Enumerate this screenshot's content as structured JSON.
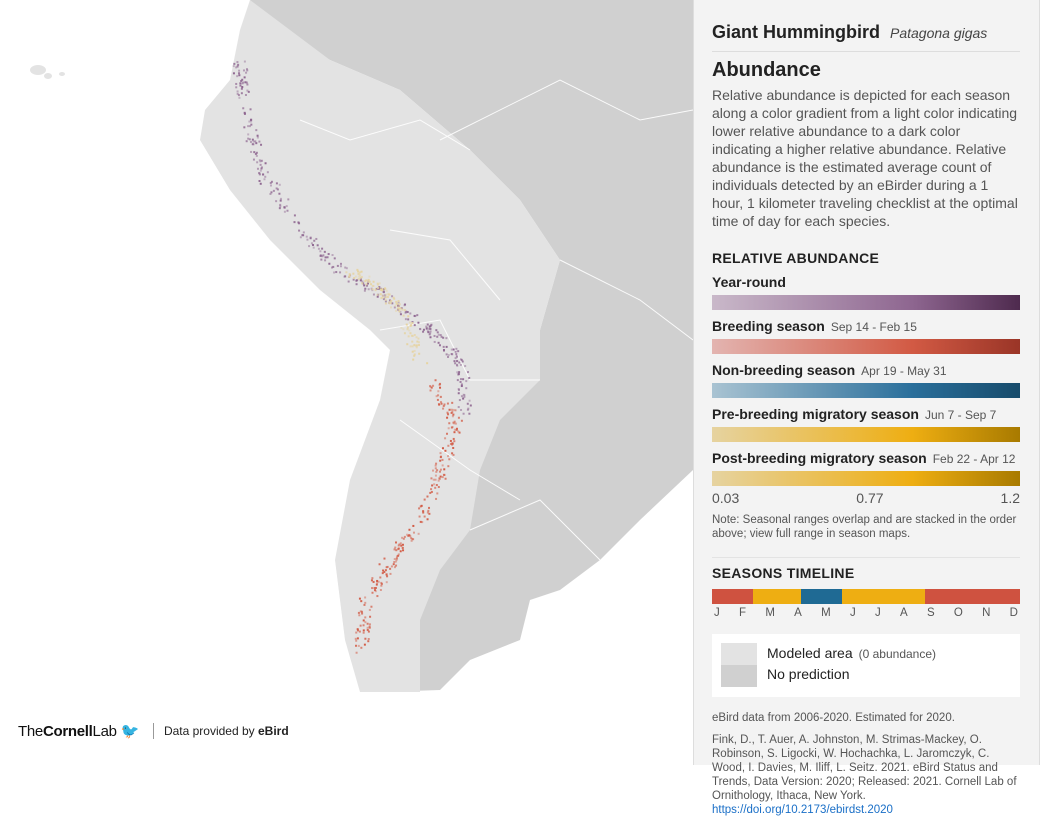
{
  "map": {
    "ocean_color": "#ffffff",
    "modeled_color": "#e3e3e3",
    "no_prediction_color": "#d0d0d0"
  },
  "footer": {
    "logo_text_1": "The",
    "logo_text_2": "Cornell",
    "logo_text_3": "Lab",
    "data_provided": "Data provided by ",
    "ebird": "eBird"
  },
  "panel": {
    "common_name": "Giant Hummingbird",
    "scientific_name": "Patagona gigas",
    "section_title": "Abundance",
    "description": "Relative abundance is depicted for each season along a color gradient from a light color indicating lower relative abundance to a dark color indicating a higher relative abundance. Relative abundance is the estimated average count of individuals detected by an eBirder during a 1 hour, 1 kilometer traveling checklist at the optimal time of day for each species.",
    "legend_title": "RELATIVE ABUNDANCE",
    "seasons": [
      {
        "label": "Year-round",
        "dates": "",
        "colors": [
          "#c9b8c9",
          "#8e6690",
          "#4e2a4e"
        ]
      },
      {
        "label": "Breeding season",
        "dates": "Sep 14 - Feb 15",
        "colors": [
          "#e3b4b0",
          "#d25a44",
          "#9a3527"
        ]
      },
      {
        "label": "Non-breeding season",
        "dates": "Apr 19 - May 31",
        "colors": [
          "#a9c3d2",
          "#2a6f9b",
          "#174b6b"
        ]
      },
      {
        "label": "Pre-breeding migratory season",
        "dates": "Jun 7 - Sep 7",
        "colors": [
          "#e6d3a0",
          "#eeae12",
          "#a87a00"
        ]
      },
      {
        "label": "Post-breeding migratory season",
        "dates": "Feb 22 - Apr 12",
        "colors": [
          "#e6d3a0",
          "#eeae12",
          "#a87a00"
        ]
      }
    ],
    "scale": [
      "0.03",
      "0.77",
      "1.2"
    ],
    "note": "Note: Seasonal ranges overlap and are stacked in the order above; view full range in season maps.",
    "timeline_title": "SEASONS TIMELINE",
    "timeline": [
      {
        "season": "Breeding season",
        "color": "#cf5240",
        "fraction": 0.133
      },
      {
        "season": "Post-breeding migratory season",
        "color": "#eeae12",
        "fraction": 0.156
      },
      {
        "season": "Non-breeding season",
        "color": "#1f6a94",
        "fraction": 0.133
      },
      {
        "season": "Pre-breeding migratory season",
        "color": "#eeae12",
        "fraction": 0.27
      },
      {
        "season": "Breeding season",
        "color": "#cf5240",
        "fraction": 0.308
      }
    ],
    "months": [
      "J",
      "F",
      "M",
      "A",
      "M",
      "J",
      "J",
      "A",
      "S",
      "O",
      "N",
      "D"
    ],
    "map_legend": {
      "modeled": "Modeled area",
      "modeled_note": "(0 abundance)",
      "no_prediction": "No prediction"
    },
    "data_years": "eBird data from 2006-2020. Estimated for 2020.",
    "citation": "Fink, D., T. Auer, A. Johnston, M. Strimas-Mackey, O. Robinson, S. Ligocki, W. Hochachka, L. Jaromczyk, C. Wood, I. Davies, M. Iliff, L. Seitz. 2021. eBird Status and Trends, Data Version: 2020; Released: 2021. Cornell Lab of Ornithology, Ithaca, New York. ",
    "doi": "https://doi.org/10.2173/ebirdst.2020"
  }
}
